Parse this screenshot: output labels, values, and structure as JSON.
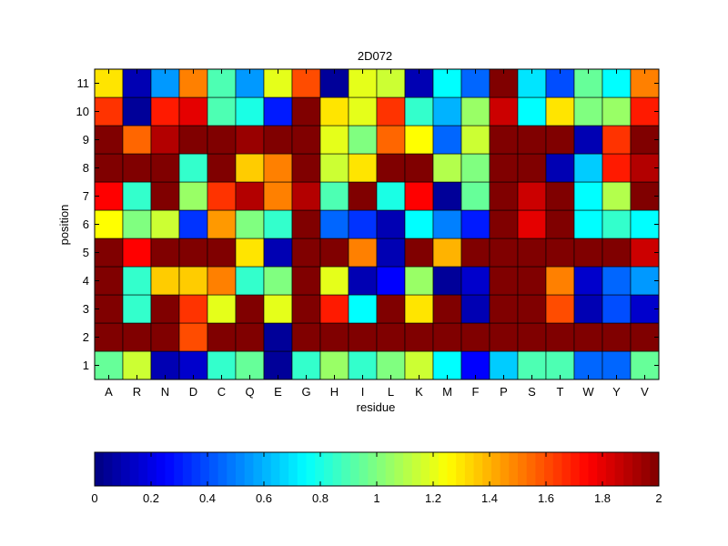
{
  "chart_data": {
    "type": "heatmap",
    "title": "2D072",
    "xlabel": "residue",
    "ylabel": "position",
    "x_categories": [
      "A",
      "R",
      "N",
      "D",
      "C",
      "Q",
      "E",
      "G",
      "H",
      "I",
      "L",
      "K",
      "M",
      "F",
      "P",
      "S",
      "T",
      "W",
      "Y",
      "V"
    ],
    "y_categories": [
      "1",
      "2",
      "3",
      "4",
      "5",
      "6",
      "7",
      "8",
      "9",
      "10",
      "11"
    ],
    "values": [
      [
        0.95,
        1.15,
        0.1,
        0.15,
        0.85,
        0.95,
        0.05,
        0.85,
        1.05,
        0.85,
        1.0,
        1.15,
        0.75,
        0.25,
        0.65,
        0.9,
        0.9,
        0.45,
        0.45,
        0.95
      ],
      [
        2.0,
        2.0,
        2.0,
        1.6,
        2.0,
        2.0,
        0.05,
        2.0,
        2.0,
        2.0,
        2.0,
        2.0,
        2.0,
        2.0,
        2.0,
        2.0,
        2.0,
        2.0,
        2.0,
        2.0
      ],
      [
        2.0,
        0.85,
        2.0,
        1.65,
        1.2,
        2.0,
        1.2,
        2.0,
        1.7,
        0.75,
        2.0,
        1.3,
        2.0,
        0.1,
        2.0,
        2.0,
        1.6,
        0.1,
        0.4,
        0.15
      ],
      [
        2.0,
        0.85,
        1.35,
        1.35,
        1.5,
        0.85,
        1.0,
        2.0,
        1.2,
        0.1,
        0.25,
        1.05,
        0.05,
        0.15,
        2.0,
        2.0,
        1.5,
        0.15,
        0.45,
        0.55
      ],
      [
        2.0,
        1.75,
        2.0,
        2.0,
        2.0,
        1.3,
        0.1,
        2.0,
        2.0,
        1.5,
        0.1,
        2.0,
        1.4,
        2.0,
        2.0,
        2.0,
        2.0,
        2.0,
        2.0,
        1.85
      ],
      [
        1.25,
        1.0,
        1.15,
        0.35,
        1.45,
        1.0,
        0.85,
        2.0,
        0.45,
        0.35,
        0.1,
        0.75,
        0.5,
        0.3,
        2.0,
        1.8,
        2.0,
        0.75,
        0.85,
        0.75
      ],
      [
        1.75,
        0.85,
        2.0,
        1.05,
        1.65,
        1.9,
        1.5,
        1.9,
        0.9,
        2.0,
        0.8,
        1.75,
        0.05,
        0.95,
        2.0,
        1.85,
        2.0,
        0.75,
        1.1,
        2.0
      ],
      [
        2.0,
        2.0,
        2.0,
        0.85,
        2.0,
        1.35,
        1.5,
        2.0,
        1.15,
        1.3,
        2.0,
        2.0,
        1.1,
        1.0,
        2.0,
        2.0,
        0.1,
        0.65,
        1.7,
        1.9
      ],
      [
        2.0,
        1.55,
        1.9,
        2.0,
        2.0,
        1.95,
        2.0,
        2.0,
        1.2,
        1.0,
        1.55,
        1.25,
        0.45,
        1.15,
        2.0,
        2.0,
        2.0,
        0.1,
        1.65,
        2.0
      ],
      [
        1.65,
        0.05,
        1.7,
        1.8,
        0.9,
        0.8,
        0.3,
        2.0,
        1.3,
        1.2,
        1.65,
        0.85,
        0.6,
        1.05,
        1.85,
        0.75,
        1.3,
        1.0,
        1.05,
        1.7
      ],
      [
        1.3,
        0.1,
        0.55,
        1.5,
        0.9,
        0.55,
        1.2,
        1.6,
        0.05,
        1.2,
        1.15,
        0.1,
        0.75,
        0.45,
        2.0,
        0.7,
        0.4,
        0.95,
        0.75,
        1.5
      ]
    ],
    "colorbar": {
      "colormap": "jet",
      "min": 0,
      "max": 2,
      "tick_values": [
        0,
        0.2,
        0.4,
        0.6,
        0.8,
        1,
        1.2,
        1.4,
        1.6,
        1.8,
        2
      ],
      "tick_labels": [
        "0",
        "0.2",
        "0.4",
        "0.6",
        "0.8",
        "1",
        "1.2",
        "1.4",
        "1.6",
        "1.8",
        "2"
      ]
    },
    "grid": true,
    "legend": "colorbar-bottom"
  }
}
